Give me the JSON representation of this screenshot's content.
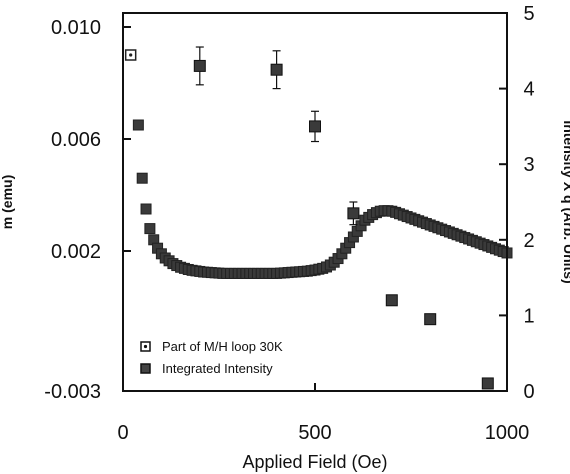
{
  "chart_data": {
    "type": "scatter",
    "xlabel": "Applied Field (Oe)",
    "ylabel_left": "m (emu)",
    "ylabel_right": "Intensity X q (Arb. Units)",
    "xlim": [
      0,
      1000
    ],
    "ylim_left": [
      -0.003,
      0.0105
    ],
    "ylim_right": [
      0,
      5
    ],
    "x_ticks": [
      0,
      500,
      1000
    ],
    "x_tick_labels": [
      "0",
      "500",
      "1000"
    ],
    "y_left_ticks": [
      0.01,
      0.006,
      0.002,
      -0.003
    ],
    "y_left_tick_labels": [
      "0.010",
      "0.006",
      "0.002",
      "-0.003"
    ],
    "y_right_ticks": [
      0,
      1,
      2,
      3,
      4,
      5
    ],
    "y_right_tick_labels": [
      "0",
      "1",
      "2",
      "3",
      "4",
      "5"
    ],
    "grid": false,
    "legend_position": "bottom-left",
    "series": [
      {
        "name": "Part of M/H loop 30K",
        "axis": "left",
        "marker": "square",
        "x": [
          20,
          40,
          50,
          60,
          70,
          80,
          90,
          100,
          110,
          120,
          130,
          140,
          150,
          160,
          170,
          180,
          190,
          200,
          210,
          220,
          230,
          240,
          250,
          260,
          270,
          280,
          290,
          300,
          310,
          320,
          330,
          340,
          350,
          360,
          370,
          380,
          390,
          400,
          410,
          420,
          430,
          440,
          450,
          460,
          470,
          480,
          490,
          500,
          510,
          520,
          530,
          540,
          550,
          560,
          570,
          580,
          590,
          600,
          610,
          620,
          630,
          640,
          650,
          660,
          670,
          680,
          690,
          700,
          710,
          720,
          730,
          740,
          750,
          760,
          770,
          780,
          790,
          800,
          810,
          820,
          830,
          840,
          850,
          860,
          870,
          880,
          890,
          900,
          910,
          920,
          930,
          940,
          950,
          960,
          970,
          980,
          990,
          1000
        ],
        "y": [
          0.009,
          0.0065,
          0.0046,
          0.0035,
          0.0028,
          0.0024,
          0.0021,
          0.0019,
          0.00175,
          0.00165,
          0.00155,
          0.00148,
          0.00142,
          0.00138,
          0.00134,
          0.00131,
          0.00129,
          0.00127,
          0.00125,
          0.00124,
          0.00123,
          0.00122,
          0.00121,
          0.0012,
          0.0012,
          0.0012,
          0.0012,
          0.0012,
          0.0012,
          0.0012,
          0.0012,
          0.0012,
          0.0012,
          0.0012,
          0.0012,
          0.0012,
          0.0012,
          0.0012,
          0.00121,
          0.00122,
          0.00123,
          0.00124,
          0.00125,
          0.00126,
          0.00127,
          0.00128,
          0.0013,
          0.00132,
          0.00135,
          0.00138,
          0.00143,
          0.0015,
          0.0016,
          0.00173,
          0.0019,
          0.0021,
          0.0023,
          0.0025,
          0.0027,
          0.0029,
          0.0031,
          0.0032,
          0.0033,
          0.00337,
          0.00342,
          0.00344,
          0.00344,
          0.00342,
          0.00338,
          0.00333,
          0.00328,
          0.00323,
          0.00318,
          0.00313,
          0.00308,
          0.00303,
          0.00298,
          0.00293,
          0.00288,
          0.00283,
          0.00278,
          0.00273,
          0.00268,
          0.00263,
          0.00258,
          0.00253,
          0.00248,
          0.00243,
          0.00238,
          0.00233,
          0.00228,
          0.00223,
          0.00218,
          0.00213,
          0.00208,
          0.00203,
          0.00198,
          0.00193
        ]
      },
      {
        "name": "Integrated Intensity",
        "axis": "right",
        "marker": "square-with-errorbar",
        "x": [
          200,
          400,
          500,
          600,
          700,
          800,
          950
        ],
        "y": [
          4.3,
          4.25,
          3.5,
          2.35,
          1.2,
          0.95,
          0.1
        ],
        "error": [
          0.25,
          0.25,
          0.2,
          0.15,
          0.05,
          0,
          0
        ]
      }
    ]
  }
}
